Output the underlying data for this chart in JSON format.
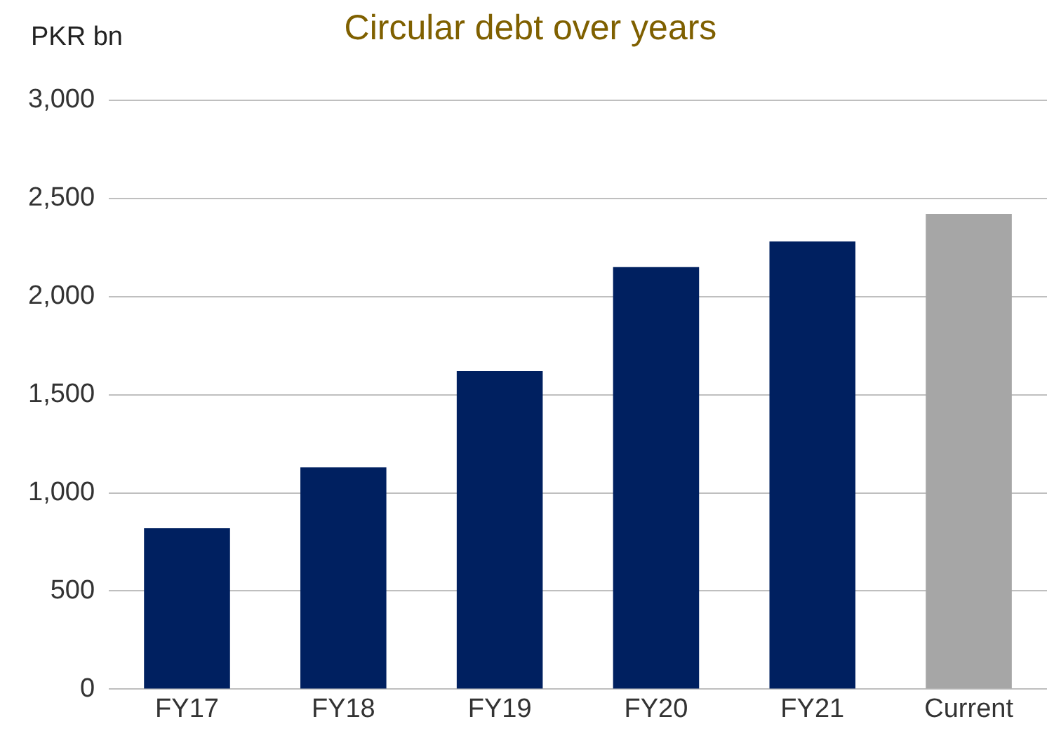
{
  "chart_data": {
    "type": "bar",
    "title": "Circular debt over years",
    "ylabel": "PKR bn",
    "categories": [
      "FY17",
      "FY18",
      "FY19",
      "FY20",
      "FY21",
      "Current"
    ],
    "values": [
      820,
      1130,
      1620,
      2150,
      2280,
      2420
    ],
    "colors": [
      "#002060",
      "#002060",
      "#002060",
      "#002060",
      "#002060",
      "#a6a6a6"
    ],
    "ylim": [
      0,
      3000
    ],
    "yticks": [
      {
        "value": 0,
        "label": "0"
      },
      {
        "value": 500,
        "label": "500"
      },
      {
        "value": 1000,
        "label": "1,000"
      },
      {
        "value": 1500,
        "label": "1,500"
      },
      {
        "value": 2000,
        "label": "2,000"
      },
      {
        "value": 2500,
        "label": "2,500"
      },
      {
        "value": 3000,
        "label": "3,000"
      }
    ],
    "grid": "y",
    "legend": false
  }
}
